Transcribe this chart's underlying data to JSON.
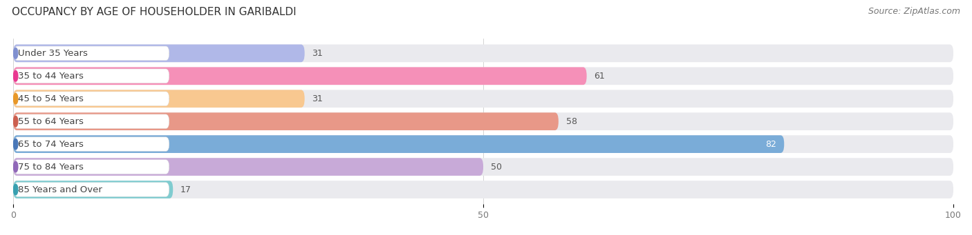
{
  "title": "OCCUPANCY BY AGE OF HOUSEHOLDER IN GARIBALDI",
  "source": "Source: ZipAtlas.com",
  "categories": [
    "Under 35 Years",
    "35 to 44 Years",
    "45 to 54 Years",
    "55 to 64 Years",
    "65 to 74 Years",
    "75 to 84 Years",
    "85 Years and Over"
  ],
  "values": [
    31,
    61,
    31,
    58,
    82,
    50,
    17
  ],
  "bar_colors": [
    "#b0b8e8",
    "#f590b8",
    "#f8c890",
    "#e89888",
    "#7aacd8",
    "#c8aad8",
    "#80ccd0"
  ],
  "dot_colors": [
    "#8090d0",
    "#e83890",
    "#e89828",
    "#cc6050",
    "#4a78b8",
    "#9068b8",
    "#38a0b0"
  ],
  "track_color": "#eaeaee",
  "xlim": [
    0,
    100
  ],
  "xticks": [
    0,
    50,
    100
  ],
  "title_fontsize": 11,
  "source_fontsize": 9,
  "label_fontsize": 9.5,
  "value_fontsize": 9
}
